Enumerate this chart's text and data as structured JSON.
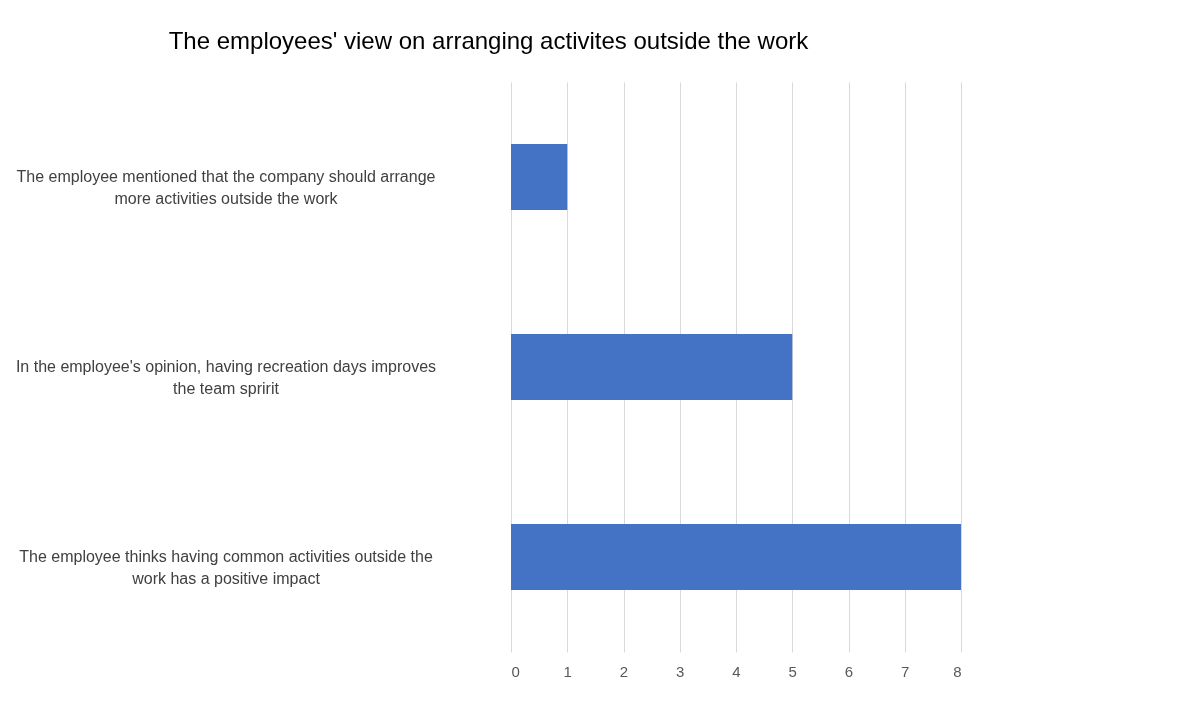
{
  "chart_data": {
    "type": "bar",
    "orientation": "horizontal",
    "title": "The employees' view on arranging activites outside the work",
    "categories": [
      "The employee mentioned that the company should arrange more activities outside the work",
      "In the employee's opinion, having recreation days improves the team spririt",
      "The employee thinks having common activities outside the work has a positive impact"
    ],
    "values": [
      1,
      5,
      8
    ],
    "color": "#4472c4",
    "xlim": [
      0,
      8
    ],
    "xticks": [
      0,
      1,
      2,
      3,
      4,
      5,
      6,
      7,
      8
    ],
    "grid": "x"
  }
}
